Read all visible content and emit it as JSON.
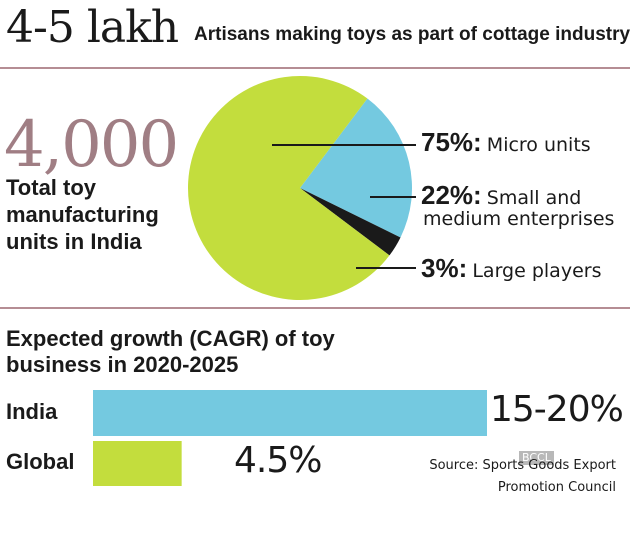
{
  "colors": {
    "micro": "#c3dd3d",
    "sme": "#74c9e0",
    "large": "#1a1a1a",
    "india_bar": "#74c9e0",
    "global_bar": "#c3dd3d",
    "accent": "#a07e84",
    "rule": "#b58d94"
  },
  "header": {
    "number": "4-5 lakh",
    "text": "Artisans making toys as part of cottage industry"
  },
  "units": {
    "number": "4,000",
    "label": "Total toy manufacturing units in India"
  },
  "growth": {
    "title": "Expected growth (CAGR) of toy business in 2020-2025"
  },
  "source": {
    "line1": "Source: Sports Goods Export",
    "line2": "Promotion Council"
  },
  "watermark": "BCCL",
  "chart_data": [
    {
      "type": "pie",
      "slices": [
        {
          "label": "Micro units",
          "value": 75,
          "value_label": "75%:"
        },
        {
          "label": "Small and medium enterprises",
          "value": 22,
          "value_label": "22%:"
        },
        {
          "label": "Large players",
          "value": 3,
          "value_label": "3%:"
        }
      ]
    },
    {
      "type": "bar",
      "orientation": "horizontal",
      "title": "Expected growth (CAGR) of toy business in 2020-2025",
      "categories": [
        "India",
        "Global"
      ],
      "values": [
        20,
        4.5
      ],
      "value_labels": [
        "15-20%",
        "4.5%"
      ]
    }
  ]
}
